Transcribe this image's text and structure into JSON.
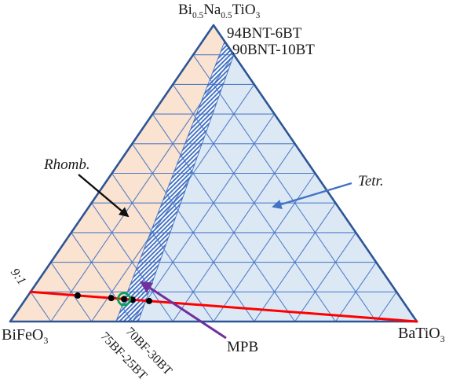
{
  "labels": {
    "top_vertex": {
      "p0": "Bi",
      "s0": "0.5",
      "p1": "Na",
      "s1": "0.5",
      "p2": "TiO",
      "s2": "3"
    },
    "left_vertex": {
      "p0": "BiFeO",
      "s0": "3"
    },
    "right_vertex": {
      "p0": "BaTiO",
      "s0": "3"
    },
    "marker_top1": "94BNT-6BT",
    "marker_top2": "90BNT-10BT",
    "rhomb": "Rhomb.",
    "tetr": "Tetr.",
    "mpb": "MPB",
    "ratio": "9:1",
    "marker_bottom1": "75BF-25BT",
    "marker_bottom2": "70BF-30BT"
  },
  "chart_data": {
    "type": "ternary-phase-diagram",
    "components": {
      "top": "Bi0.5Na0.5TiO3 (BNT)",
      "left": "BiFeO3 (BF)",
      "right": "BaTiO3 (BT)"
    },
    "grid_divisions": 10,
    "colors": {
      "rhomb_fill": "#fae3d0",
      "tetr_fill": "#dce9f5",
      "grid_line": "#4472c4",
      "triangle_edge": "#2e5597",
      "hatch": "#4472c4",
      "text": "#1a1a1a"
    },
    "regions": [
      {
        "name": "Rhomb.",
        "phase": "rhombohedral",
        "side": "left"
      },
      {
        "name": "Tetr.",
        "phase": "tetragonal",
        "side": "right"
      },
      {
        "name": "MPB",
        "phase": "morphotropic phase boundary",
        "band": {
          "right_edge_bt": [
            0.055,
            0.1
          ],
          "bottom_edge_bt": [
            0.26,
            0.315
          ]
        }
      }
    ],
    "edge_markers": [
      {
        "label": "94BNT-6BT",
        "edge": "right",
        "bt": 0.06
      },
      {
        "label": "90BNT-10BT",
        "edge": "right",
        "bt": 0.1
      },
      {
        "label": "75BF-25BT",
        "edge": "bottom",
        "bt": 0.25
      },
      {
        "label": "70BF-30BT",
        "edge": "bottom",
        "bt": 0.3
      }
    ],
    "tie_line": {
      "label": "9:1",
      "description": "BF:BNT = 9:1 join line to BaTiO3",
      "from": {
        "bf": 0.9,
        "bnt": 0.1,
        "bt": 0.0
      },
      "to": {
        "bf": 0.0,
        "bnt": 0.0,
        "bt": 1.0
      },
      "color": "#ff0000"
    },
    "data_points": {
      "bt_fractions": [
        0.122,
        0.209,
        0.242,
        0.264,
        0.307
      ],
      "point_color": "#000000",
      "highlighted_bt": 0.242,
      "highlight_color": "#00a64f"
    },
    "annotations": [
      {
        "name": "rhomb-arrow",
        "color": "#111111",
        "from": [
          100,
          222
        ],
        "to": [
          163,
          275
        ]
      },
      {
        "name": "tetr-arrow",
        "color": "#4472c4",
        "from": [
          448,
          233
        ],
        "to": [
          348,
          263
        ]
      },
      {
        "name": "mpb-arrow",
        "color": "#7030a0",
        "from": [
          288,
          430
        ],
        "to": [
          180,
          359
        ]
      }
    ]
  }
}
